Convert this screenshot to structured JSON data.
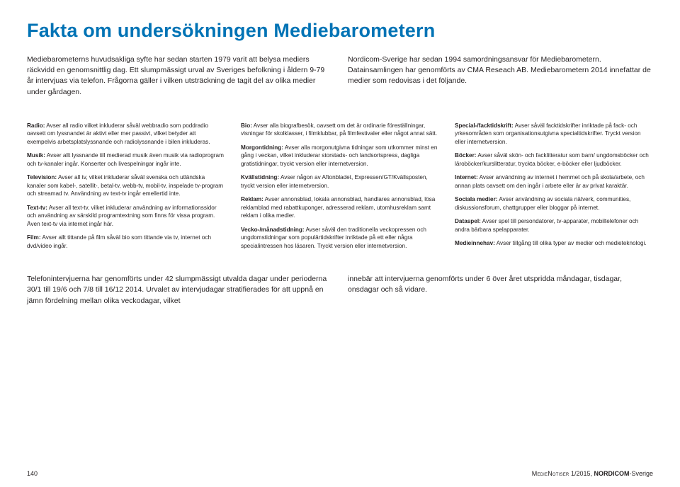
{
  "title": "Fakta om undersökningen Mediebarometern",
  "intro": {
    "left": "Mediebarometerns huvudsakliga syfte har sedan starten 1979 varit att belysa mediers räckvidd en genomsnittlig dag. Ett slumpmässigt urval av Sveriges befolkning i åldern 9-79 år intervjuas via telefon. Frågorna gäller i vilken utsträckning de tagit del av olika medier under gårdagen.",
    "right": "Nordicom-Sverige har sedan 1994 samordningsansvar för Mediebarometern. Datainsamlingen har genomförts av CMA Reseach AB. Mediebarometern 2014 innefattar de medier som redovisas i det följande."
  },
  "defs": {
    "col1": [
      {
        "term": "Radio:",
        "text": " Avser all radio vilket inkluderar såväl webbradio som poddradio oavsett om lyssnandet är aktivt eller mer passivt, vilket betyder att exempelvis arbetsplatslyssnande och radiolyssnande i bilen inkluderas."
      },
      {
        "term": "Musik:",
        "text": " Avser allt lyssnande till medierad musik även musik via radioprogram och tv-kanaler ingår. Konserter och livespelningar ingår inte."
      },
      {
        "term": "Television:",
        "text": " Avser all tv, vilket inkluderar såväl svenska och utländska kanaler som kabel-, satellit-, betal-tv, webb-tv, mobil-tv, inspelade tv-program och streamad tv. Användning av text-tv ingår emellertid inte."
      },
      {
        "term": "Text-tv:",
        "text": " Avser all text-tv, vilket inkluderar användning av informationssidor och användning av särskild programtextning som finns för vissa program. Även text-tv via internet ingår här."
      },
      {
        "term": "Film:",
        "text": " Avser allt tittande på film såväl bio som tittande via tv, internet och dvd/video ingår."
      }
    ],
    "col2": [
      {
        "term": "Bio:",
        "text": " Avser alla biografbesök, oavsett om det är ordinarie föreställningar, visningar för skolklasser, i filmklubbar, på filmfestivaler eller något annat sätt."
      },
      {
        "term": "Morgontidning:",
        "text": " Avser alla morgonutgivna tidningar som utkommer minst en gång i veckan, vilket inkluderar storstads- och landsortspress, dagliga gratistidningar, tryckt version eller internetversion."
      },
      {
        "term": "Kvällstidning:",
        "text": " Avser någon av Aftonbladet, Expressen/GT/Kvällsposten, tryckt version eller internetversion."
      },
      {
        "term": "Reklam:",
        "text": " Avser annonsblad, lokala annonsblad, handlares annonsblad, lösa reklamblad med rabattkuponger, adresserad reklam, utomhusreklam samt reklam i olika medier."
      },
      {
        "term": "Vecko-/månadstidning:",
        "text": " Avser såväl den traditionella veckopressen och ungdomstidningar som populärtidskrifter inriktade på ett eller några specialintressen hos läsaren. Tryckt version eller internetversion."
      }
    ],
    "col3": [
      {
        "term": "Special-/facktidskrift:",
        "text": " Avser såväl facktidskrifter inriktade på fack- och yrkesområden som organisationsutgivna specialtidskrifter. Tryckt version eller internetversion."
      },
      {
        "term": "Böcker:",
        "text": " Avser såväl skön- och facklitteratur som barn/ ungdomsböcker och läroböcker/kurslitteratur, tryckta böcker, e-böcker eller ljudböcker."
      },
      {
        "term": "Internet:",
        "text": " Avser användning av internet i hemmet och på skola/arbete, och annan plats oavsett om den ingår i arbete eller är av privat karaktär."
      },
      {
        "term": "Sociala medier:",
        "text": " Avser användning av sociala nätverk, communities, diskussionsforum, chattgrupper eller bloggar på internet."
      },
      {
        "term": "Dataspel:",
        "text": " Avser spel till persondatorer, tv-apparater, mobiltelefoner och andra bärbara spelapparater."
      },
      {
        "term": "Medieinnehav:",
        "text": " Avser tillgång till olika typer av medier och medieteknologi."
      }
    ]
  },
  "footnote": {
    "left": "Telefonintervjuerna har genomförts under 42 slumpmässigt utvalda dagar under perioderna 30/1 till 19/6 och 7/8 till 16/12 2014. Urvalet av intervjudagar stratifierades för att uppnå en jämn fördelning mellan olika veckodagar, vilket",
    "right": "innebär att intervjuerna genomförts under 6 över året utspridda måndagar, tisdagar, onsdagar och så vidare."
  },
  "pagefoot": {
    "pageno": "140",
    "series": "MedieNotiser",
    "issue": " 1/2015, ",
    "org": "NORDICOM",
    "orgsuffix": "-Sverige"
  }
}
